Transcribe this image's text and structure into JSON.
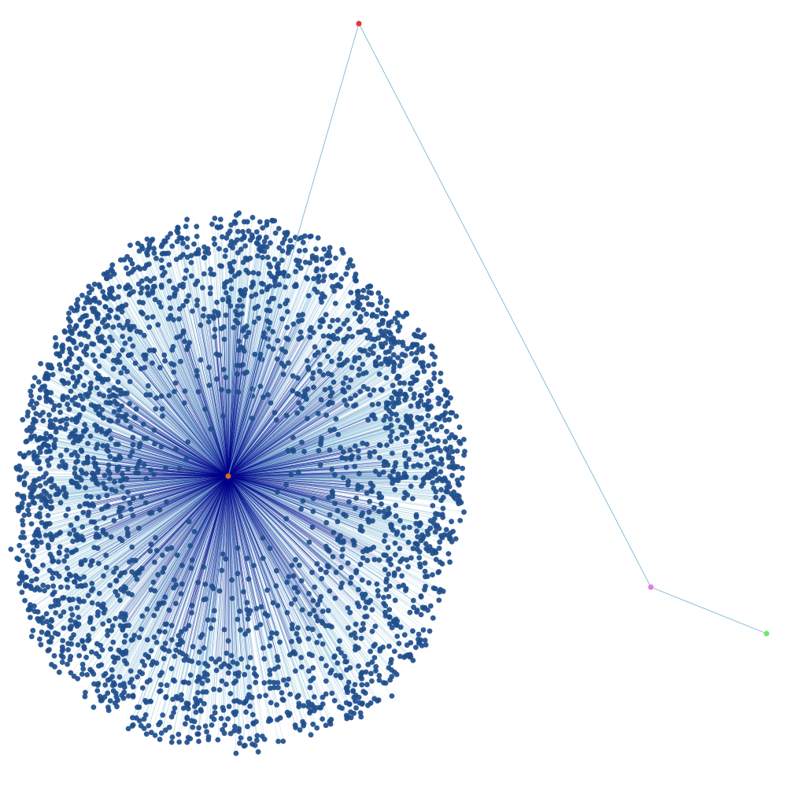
{
  "graph": {
    "colors": {
      "background": "#ffffff",
      "hub_node": "#d2691e",
      "leaf_node": "#1f4e8c",
      "edge_dense": "#00008b",
      "edge_light": "#7fb8d6",
      "node_red": "#e8333a",
      "node_pink": "#e879e8",
      "node_green": "#6ee86e"
    },
    "nodes": [
      {
        "id": "hub",
        "color_key": "hub_node"
      },
      {
        "id": "top",
        "color_key": "node_red"
      },
      {
        "id": "right",
        "color_key": "node_pink"
      },
      {
        "id": "far-right",
        "color_key": "node_green"
      }
    ],
    "edges": [
      {
        "from": "top",
        "to": "hub"
      },
      {
        "from": "top",
        "to": "right"
      },
      {
        "from": "right",
        "to": "far-right"
      }
    ],
    "leaf_cluster": {
      "center_node": "hub",
      "approx_leaf_count": 3000
    }
  }
}
